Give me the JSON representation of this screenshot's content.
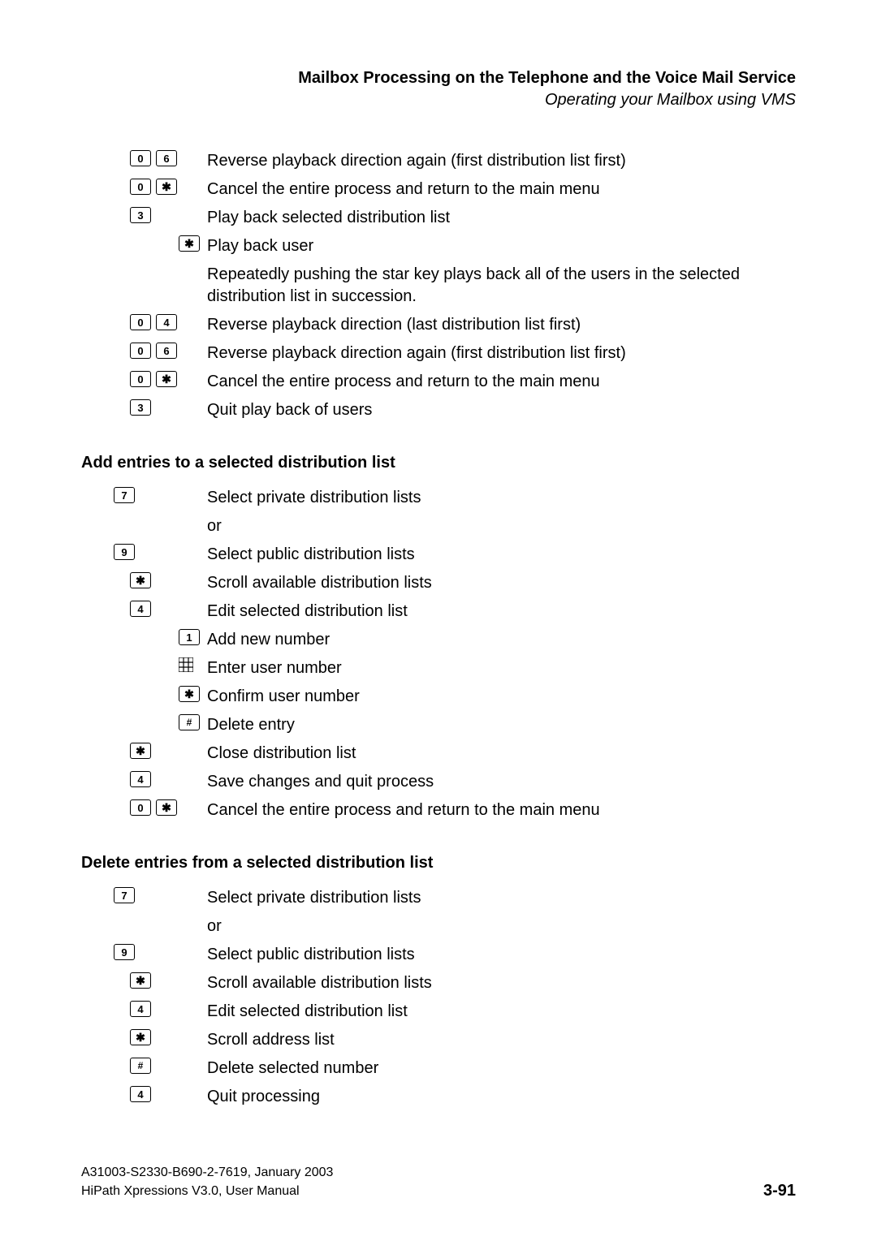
{
  "header": {
    "title": "Mailbox Processing on the Telephone and the Voice Mail Service",
    "subtitle": "Operating your Mailbox using VMS"
  },
  "section1": {
    "rows": [
      {
        "keys": [
          "0",
          "6"
        ],
        "text": "Reverse playback direction again (first distribution list first)",
        "indent": 0
      },
      {
        "keys": [
          "0",
          "*"
        ],
        "text": "Cancel the entire process and return to the main menu",
        "indent": 0
      },
      {
        "keys": [
          "3"
        ],
        "text": "Play back selected distribution list",
        "indent": 0
      },
      {
        "keys": [
          "*"
        ],
        "text": "Play back user",
        "indent": 2
      },
      {
        "keys": [],
        "text": "Repeatedly pushing the star key plays back all of the users in the selected distribution list in succession.",
        "indent": 0
      },
      {
        "keys": [
          "0",
          "4"
        ],
        "text": "Reverse playback direction (last distribution list first)",
        "indent": 0
      },
      {
        "keys": [
          "0",
          "6"
        ],
        "text": "Reverse playback direction again (first distribution list first)",
        "indent": 0
      },
      {
        "keys": [
          "0",
          "*"
        ],
        "text": "Cancel the entire process and return to the main menu",
        "indent": 0
      },
      {
        "keys": [
          "3"
        ],
        "text": "Quit play back of users",
        "indent": 0
      }
    ]
  },
  "section2": {
    "heading": "Add entries to a selected distribution list",
    "rows": [
      {
        "keys": [
          "7"
        ],
        "text": "Select private distribution lists",
        "indent": -1
      },
      {
        "keys": [],
        "text": "or",
        "indent": 0
      },
      {
        "keys": [
          "9"
        ],
        "text": "Select public distribution lists",
        "indent": -1
      },
      {
        "keys": [
          "*"
        ],
        "text": "Scroll available distribution lists",
        "indent": 0
      },
      {
        "keys": [
          "4"
        ],
        "text": "Edit selected distribution list",
        "indent": 0
      },
      {
        "keys": [
          "1"
        ],
        "text": "Add new number",
        "indent": 2
      },
      {
        "keys": [
          "grid"
        ],
        "text": "Enter user number",
        "indent": 2
      },
      {
        "keys": [
          "*"
        ],
        "text": "Confirm user number",
        "indent": 2
      },
      {
        "keys": [
          "#"
        ],
        "text": "Delete entry",
        "indent": 2
      },
      {
        "keys": [
          "*"
        ],
        "text": "Close distribution list",
        "indent": 0
      },
      {
        "keys": [
          "4"
        ],
        "text": "Save changes and quit process",
        "indent": 0
      },
      {
        "keys": [
          "0",
          "*"
        ],
        "text": "Cancel the entire process and return to the main menu",
        "indent": 0
      }
    ]
  },
  "section3": {
    "heading": "Delete entries from a selected distribution list",
    "rows": [
      {
        "keys": [
          "7"
        ],
        "text": "Select private distribution lists",
        "indent": -1
      },
      {
        "keys": [],
        "text": "or",
        "indent": 0
      },
      {
        "keys": [
          "9"
        ],
        "text": "Select public distribution lists",
        "indent": -1
      },
      {
        "keys": [
          "*"
        ],
        "text": "Scroll available distribution lists",
        "indent": 0
      },
      {
        "keys": [
          "4"
        ],
        "text": "Edit selected distribution list",
        "indent": 0
      },
      {
        "keys": [
          "*"
        ],
        "text": "Scroll address list",
        "indent": 0
      },
      {
        "keys": [
          "#"
        ],
        "text": "Delete selected number",
        "indent": 0
      },
      {
        "keys": [
          "4"
        ],
        "text": "Quit processing",
        "indent": 0
      }
    ]
  },
  "footer": {
    "doc_number": "A31003-S2330-B690-2-7619, January 2003",
    "product": "HiPath Xpressions V3.0, User Manual",
    "page": "3-91"
  },
  "key_labels": {
    "0": "0",
    "1": "1",
    "3": "3",
    "4": "4",
    "6": "6",
    "7": "7",
    "9": "9",
    "star": "✱",
    "hash": "#"
  },
  "styling": {
    "page_bg": "#ffffff",
    "text_color": "#000000",
    "body_fontsize": 20,
    "heading_fontsize": 20,
    "footer_fontsize": 16,
    "page_num_fontsize": 20,
    "key_border_color": "#000000",
    "key_bg": "#ffffff",
    "key_width": 26,
    "key_height": 20,
    "key_border_radius": 3
  }
}
